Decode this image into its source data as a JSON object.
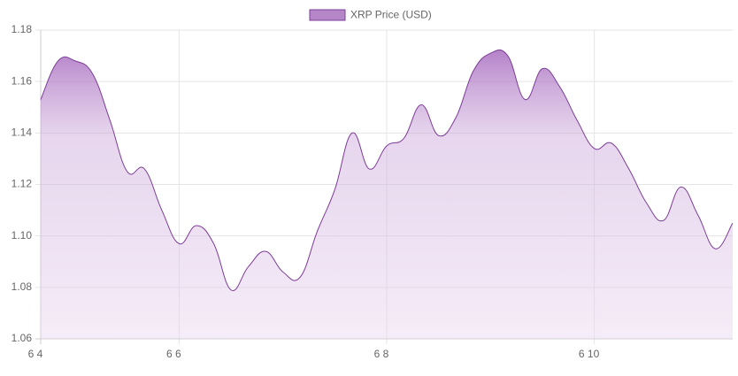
{
  "chart_data": {
    "type": "line",
    "categories": [
      "6 4",
      null,
      null,
      null,
      null,
      null,
      null,
      null,
      "6 6",
      null,
      null,
      null,
      null,
      null,
      null,
      null,
      null,
      null,
      null,
      null,
      "6 8",
      null,
      null,
      null,
      null,
      null,
      null,
      null,
      null,
      null,
      null,
      null,
      "6 10",
      null,
      null,
      null,
      null,
      null,
      null,
      null,
      null
    ],
    "series": [
      {
        "name": "XRP Price (USD)",
        "color": "#7d3c98",
        "fill": "#b587c8",
        "values": [
          1.153,
          1.168,
          1.168,
          1.163,
          1.145,
          1.125,
          1.126,
          1.11,
          1.097,
          1.104,
          1.097,
          1.079,
          1.088,
          1.094,
          1.086,
          1.084,
          1.102,
          1.118,
          1.14,
          1.126,
          1.135,
          1.138,
          1.151,
          1.139,
          1.146,
          1.164,
          1.171,
          1.17,
          1.153,
          1.165,
          1.158,
          1.145,
          1.134,
          1.136,
          1.126,
          1.113,
          1.106,
          1.119,
          1.108,
          1.095,
          1.105
        ]
      }
    ],
    "ylim": [
      1.06,
      1.18
    ],
    "yticks": [
      1.06,
      1.08,
      {
        "value": 1.1,
        "label": "1.10"
      },
      1.12,
      1.14,
      1.16,
      1.18
    ],
    "grid": true,
    "legend": "top"
  }
}
